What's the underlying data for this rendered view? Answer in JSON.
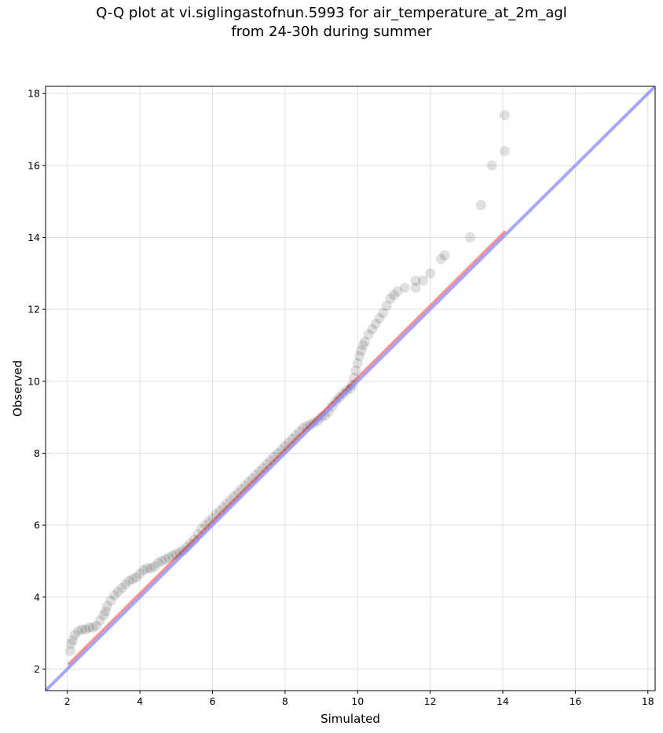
{
  "chart_data": {
    "type": "scatter",
    "title_lines": [
      "Q-Q plot at vi.siglingastofnun.5993 for air_temperature_at_2m_agl",
      "from 24-30h during summer"
    ],
    "xlabel": "Simulated",
    "ylabel": "Observed",
    "xlim": [
      1.4,
      18.2
    ],
    "ylim": [
      1.4,
      18.2
    ],
    "xticks": [
      2,
      4,
      6,
      8,
      10,
      12,
      14,
      16,
      18
    ],
    "yticks": [
      2,
      4,
      6,
      8,
      10,
      12,
      14,
      16,
      18
    ],
    "grid": true,
    "legend": false,
    "colors": {
      "points": "#000000",
      "fit_line": "#ff8080",
      "identity_line": "#8888ff",
      "grid": "#e0e0e0"
    },
    "reference_lines": {
      "identity": {
        "x": [
          1.4,
          18.2
        ],
        "y": [
          1.4,
          18.2
        ]
      },
      "fit": {
        "x": [
          2.05,
          14.05
        ],
        "y": [
          2.15,
          14.15
        ]
      }
    },
    "points": {
      "x": [
        2.08,
        2.1,
        2.15,
        2.2,
        2.3,
        2.4,
        2.5,
        2.6,
        2.7,
        2.8,
        2.9,
        3.0,
        3.05,
        3.1,
        3.2,
        3.3,
        3.4,
        3.5,
        3.6,
        3.7,
        3.8,
        3.9,
        4.0,
        4.1,
        4.2,
        4.3,
        4.4,
        4.5,
        4.6,
        4.7,
        4.8,
        4.9,
        5.0,
        5.1,
        5.2,
        5.3,
        5.4,
        5.5,
        5.6,
        5.7,
        5.8,
        5.9,
        6.0,
        6.1,
        6.2,
        6.3,
        6.4,
        6.5,
        6.6,
        6.7,
        6.8,
        6.9,
        7.0,
        7.1,
        7.2,
        7.3,
        7.4,
        7.5,
        7.6,
        7.7,
        7.8,
        7.9,
        8.0,
        8.1,
        8.2,
        8.3,
        8.4,
        8.5,
        8.6,
        8.7,
        8.8,
        8.9,
        9.0,
        9.1,
        9.2,
        9.3,
        9.4,
        9.5,
        9.6,
        9.7,
        9.8,
        9.85,
        9.9,
        9.95,
        10.0,
        10.05,
        10.1,
        10.15,
        10.2,
        10.3,
        10.4,
        10.5,
        10.6,
        10.7,
        10.8,
        10.9,
        11.0,
        11.1,
        11.3,
        11.6,
        11.6,
        11.8,
        12.0,
        12.3,
        12.4,
        13.1,
        13.4,
        13.7,
        14.05,
        14.05
      ],
      "y": [
        2.5,
        2.7,
        2.8,
        2.95,
        3.05,
        3.1,
        3.1,
        3.15,
        3.15,
        3.2,
        3.35,
        3.5,
        3.6,
        3.75,
        3.9,
        4.05,
        4.15,
        4.25,
        4.35,
        4.45,
        4.5,
        4.55,
        4.65,
        4.75,
        4.8,
        4.8,
        4.85,
        4.95,
        5.0,
        5.05,
        5.1,
        5.15,
        5.2,
        5.25,
        5.3,
        5.4,
        5.5,
        5.6,
        5.75,
        5.9,
        6.0,
        6.1,
        6.2,
        6.3,
        6.4,
        6.5,
        6.6,
        6.7,
        6.8,
        6.9,
        7.0,
        7.1,
        7.2,
        7.3,
        7.4,
        7.5,
        7.6,
        7.7,
        7.8,
        7.9,
        8.0,
        8.1,
        8.2,
        8.3,
        8.4,
        8.5,
        8.6,
        8.7,
        8.75,
        8.8,
        8.85,
        8.9,
        9.0,
        9.05,
        9.15,
        9.3,
        9.45,
        9.55,
        9.65,
        9.75,
        9.8,
        9.9,
        10.1,
        10.3,
        10.5,
        10.7,
        10.85,
        11.0,
        11.1,
        11.3,
        11.45,
        11.6,
        11.75,
        11.9,
        12.1,
        12.3,
        12.4,
        12.5,
        12.6,
        12.6,
        12.8,
        12.8,
        13.0,
        13.4,
        13.5,
        14.0,
        14.9,
        16.0,
        16.4,
        17.4
      ]
    }
  }
}
